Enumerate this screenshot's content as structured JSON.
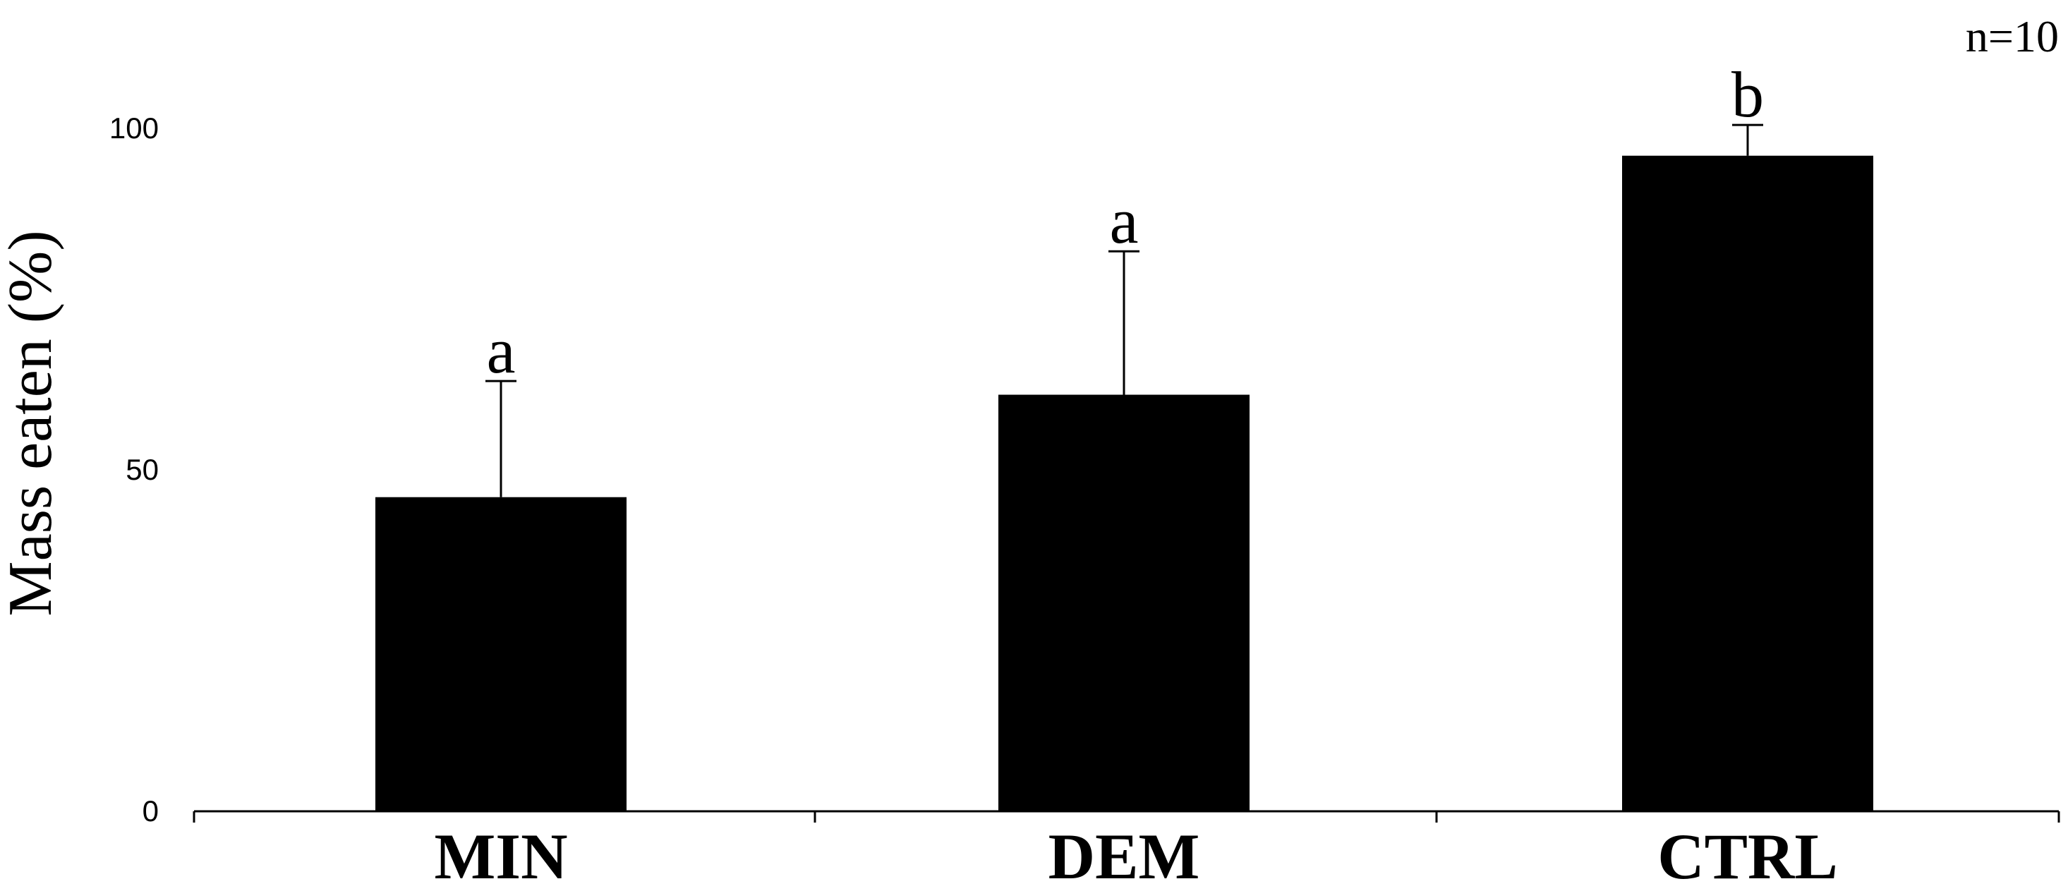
{
  "chart_data": {
    "type": "bar",
    "categories": [
      "MIN",
      "DEM",
      "CTRL"
    ],
    "values": [
      46,
      61,
      96
    ],
    "error_bars": [
      17,
      21,
      4.5
    ],
    "significance_letters": [
      "a",
      "a",
      "b"
    ],
    "ylabel": "Mass eaten (%)",
    "xlabel": "",
    "yticks": [
      0,
      50,
      100
    ],
    "ylim": [
      0,
      100
    ],
    "annotation": "n=10",
    "bar_color": "#000000",
    "grid": false
  }
}
